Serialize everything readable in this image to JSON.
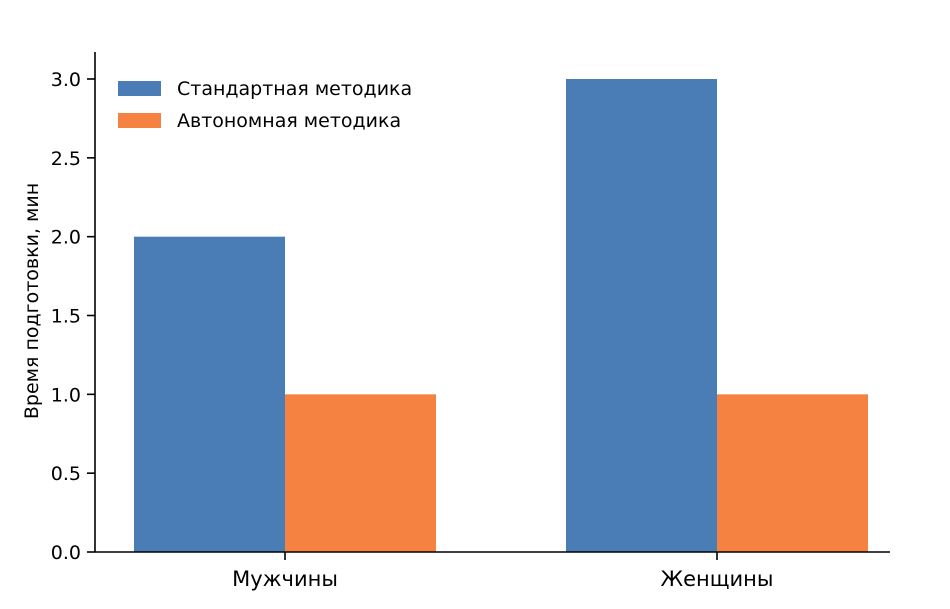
{
  "chart_data": {
    "type": "bar",
    "categories": [
      "Мужчины",
      "Женщины"
    ],
    "series": [
      {
        "name": "Стандартная методика",
        "values": [
          2.0,
          3.0
        ],
        "color": "#4a7db5"
      },
      {
        "name": " Автономная методика",
        "values": [
          1.0,
          1.0
        ],
        "color": "#f58241"
      }
    ],
    "ylabel": "Время подготовки, мин",
    "xlabel": "",
    "ylim": [
      0,
      3.0
    ],
    "yticks": [
      "0.0",
      "0.5",
      "1.0",
      "1.5",
      "2.0",
      "2.5",
      "3.0"
    ],
    "grid": false,
    "legend_position": "top-left"
  }
}
